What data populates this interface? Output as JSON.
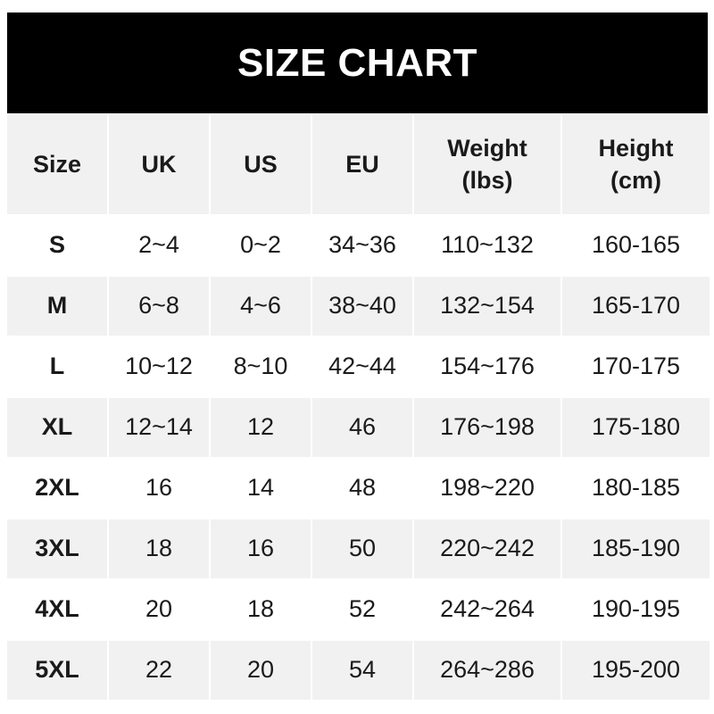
{
  "title": "SIZE CHART",
  "columns": [
    "Size",
    "UK",
    "US",
    "EU",
    "Weight\n(lbs)",
    "Height\n(cm)"
  ],
  "rows": [
    [
      "S",
      "2~4",
      "0~2",
      "34~36",
      "110~132",
      "160-165"
    ],
    [
      "M",
      "6~8",
      "4~6",
      "38~40",
      "132~154",
      "165-170"
    ],
    [
      "L",
      "10~12",
      "8~10",
      "42~44",
      "154~176",
      "170-175"
    ],
    [
      "XL",
      "12~14",
      "12",
      "46",
      "176~198",
      "175-180"
    ],
    [
      "2XL",
      "16",
      "14",
      "48",
      "198~220",
      "180-185"
    ],
    [
      "3XL",
      "18",
      "16",
      "50",
      "220~242",
      "185-190"
    ],
    [
      "4XL",
      "20",
      "18",
      "52",
      "242~264",
      "190-195"
    ],
    [
      "5XL",
      "22",
      "20",
      "54",
      "264~286",
      "195-200"
    ]
  ],
  "colors": {
    "header_bg": "#000000",
    "shaded_row": "#f1f1f1",
    "plain_row": "#ffffff"
  }
}
